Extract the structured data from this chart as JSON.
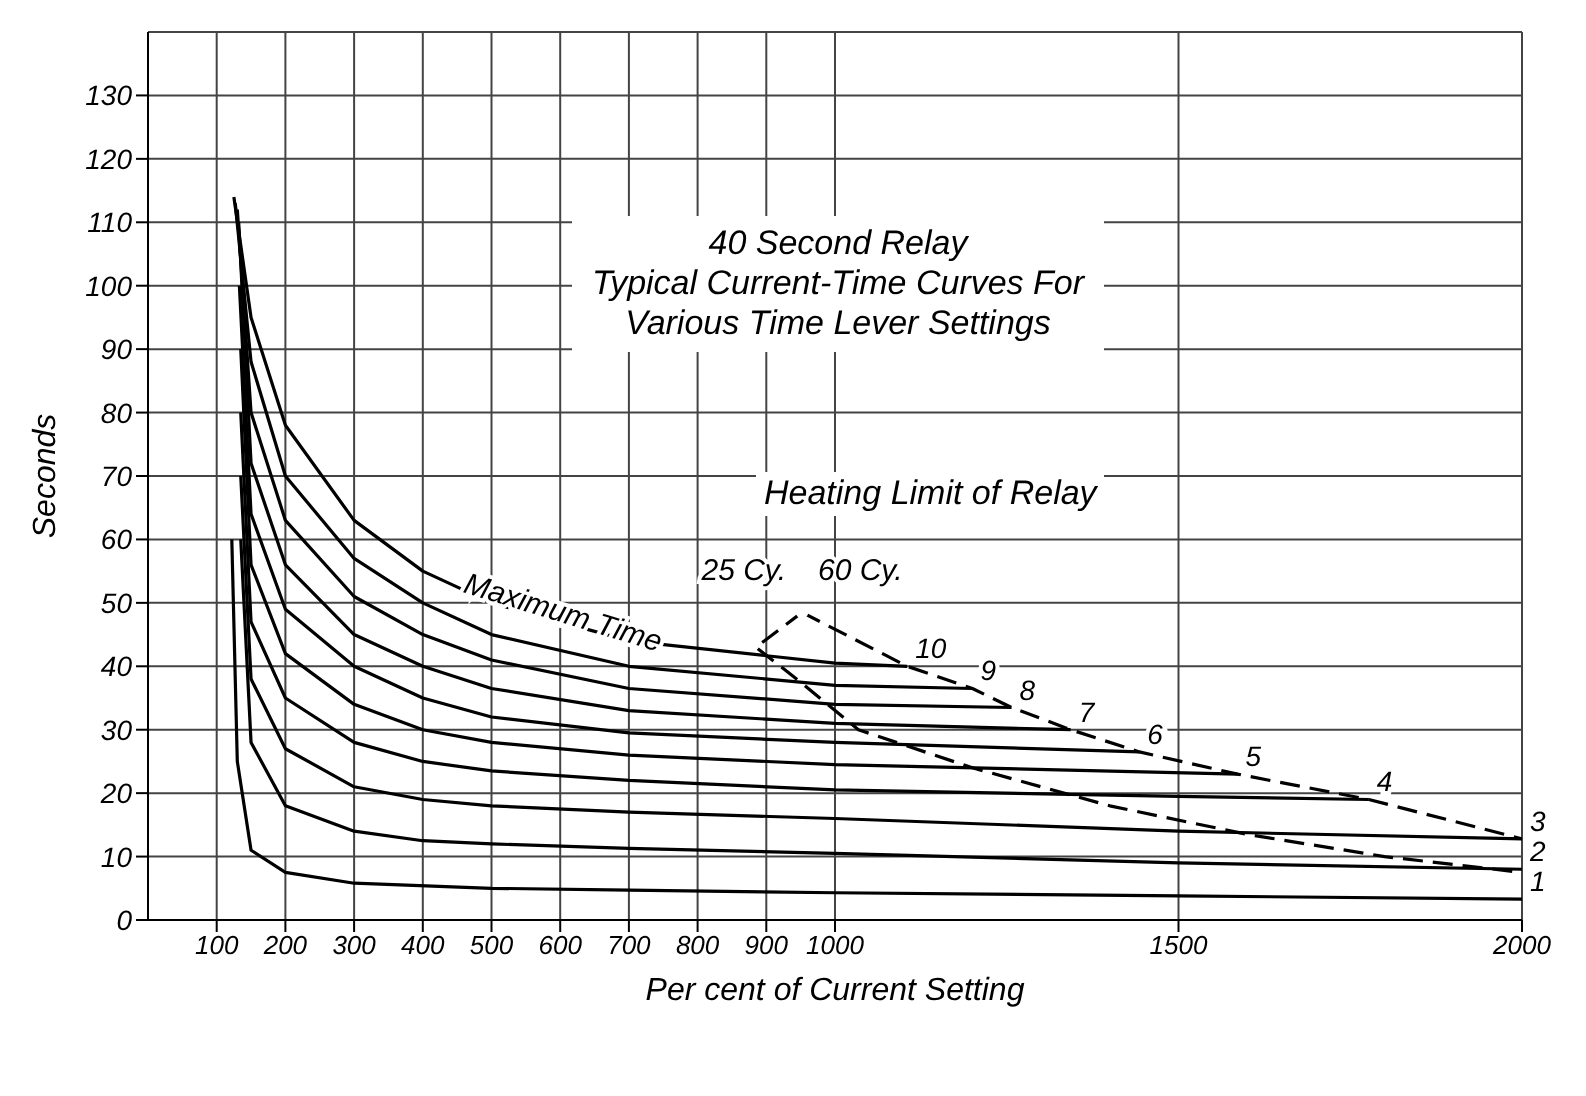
{
  "chart_data": {
    "type": "line",
    "title": "40 Second Relay",
    "subtitle": "Typical Current-Time Curves For Various Time Lever Settings",
    "xlabel": "Per cent of Current Setting",
    "ylabel": "Seconds",
    "xlim": [
      0,
      2000
    ],
    "xticks": [
      100,
      200,
      300,
      400,
      500,
      600,
      700,
      800,
      900,
      1000,
      1500,
      2000
    ],
    "ylim": [
      0,
      140
    ],
    "yticks": [
      0,
      10,
      20,
      30,
      40,
      50,
      60,
      70,
      80,
      90,
      100,
      110,
      120,
      130
    ],
    "grid": true,
    "marker": "none",
    "line_style": "solid",
    "annotations": [
      {
        "text": "Maximum Time",
        "x": 600,
        "y": 47
      },
      "Heating Limit of Relay"
    ],
    "series": [
      {
        "name": "1",
        "color": "#000000",
        "x": [
          122,
          130,
          150,
          200,
          300,
          500,
          700,
          1000,
          1500,
          2000
        ],
        "values": [
          60,
          25,
          11,
          7.5,
          5.8,
          5,
          4.7,
          4.3,
          3.8,
          3.3
        ]
      },
      {
        "name": "2",
        "color": "#000000",
        "x": [
          135,
          150,
          200,
          300,
          400,
          500,
          700,
          1000,
          1500,
          2000
        ],
        "values": [
          60,
          28,
          18,
          14,
          12.5,
          12,
          11.3,
          10.5,
          9,
          8
        ]
      },
      {
        "name": "3",
        "color": "#000000",
        "x": [
          135,
          150,
          200,
          300,
          400,
          500,
          700,
          1000,
          1500,
          2000
        ],
        "values": [
          70,
          38,
          27,
          21,
          19,
          18,
          17,
          16,
          14,
          12.8
        ]
      },
      {
        "name": "4",
        "color": "#000000",
        "x": [
          135,
          150,
          200,
          300,
          400,
          500,
          700,
          1000,
          1500,
          1777
        ],
        "values": [
          80,
          47,
          35,
          28,
          25,
          23.5,
          22,
          20.5,
          19.5,
          19
        ]
      },
      {
        "name": "5",
        "color": "#000000",
        "x": [
          135,
          150,
          200,
          300,
          400,
          500,
          700,
          1000,
          1586
        ],
        "values": [
          90,
          56,
          42,
          34,
          30,
          28,
          26,
          24.5,
          23
        ]
      },
      {
        "name": "6",
        "color": "#000000",
        "x": [
          133,
          150,
          200,
          300,
          400,
          500,
          700,
          1000,
          1443
        ],
        "values": [
          100,
          64,
          49,
          40,
          35,
          32,
          29.5,
          28,
          26.5
        ]
      },
      {
        "name": "7",
        "color": "#000000",
        "x": [
          132,
          150,
          200,
          300,
          400,
          500,
          700,
          1000,
          1343
        ],
        "values": [
          110,
          72,
          56,
          45,
          40,
          36.5,
          33,
          31,
          30
        ]
      },
      {
        "name": "8",
        "color": "#000000",
        "x": [
          130,
          150,
          200,
          300,
          400,
          500,
          700,
          1000,
          1257
        ],
        "values": [
          112,
          80,
          63,
          51,
          45,
          41,
          36.5,
          34,
          33.5
        ]
      },
      {
        "name": "9",
        "color": "#000000",
        "x": [
          127,
          150,
          200,
          300,
          400,
          500,
          700,
          1000,
          1200
        ],
        "values": [
          113,
          88,
          70,
          57,
          50,
          45,
          40,
          37,
          36.5
        ]
      },
      {
        "name": "10",
        "color": "#000000",
        "x": [
          125,
          150,
          200,
          300,
          400,
          500,
          700,
          1000,
          1105
        ],
        "values": [
          114,
          95,
          78,
          63,
          55,
          50,
          44,
          40.5,
          40
        ]
      },
      {
        "name": "25 Cy.",
        "color": "#000000",
        "line_style": "dashed",
        "x": [
          952,
          885,
          950,
          1034,
          1200,
          1400,
          1600,
          1800,
          2000
        ],
        "values": [
          48.5,
          43,
          37.5,
          30,
          24,
          18,
          13.5,
          10,
          7.5
        ]
      },
      {
        "name": "60 Cy.",
        "color": "#000000",
        "line_style": "dashed",
        "x": [
          952,
          1105,
          1200,
          1257,
          1343,
          1443,
          1586,
          1777,
          2000
        ],
        "values": [
          48.5,
          40,
          36.5,
          33.5,
          30,
          26.5,
          23,
          19,
          12.8
        ]
      }
    ]
  }
}
